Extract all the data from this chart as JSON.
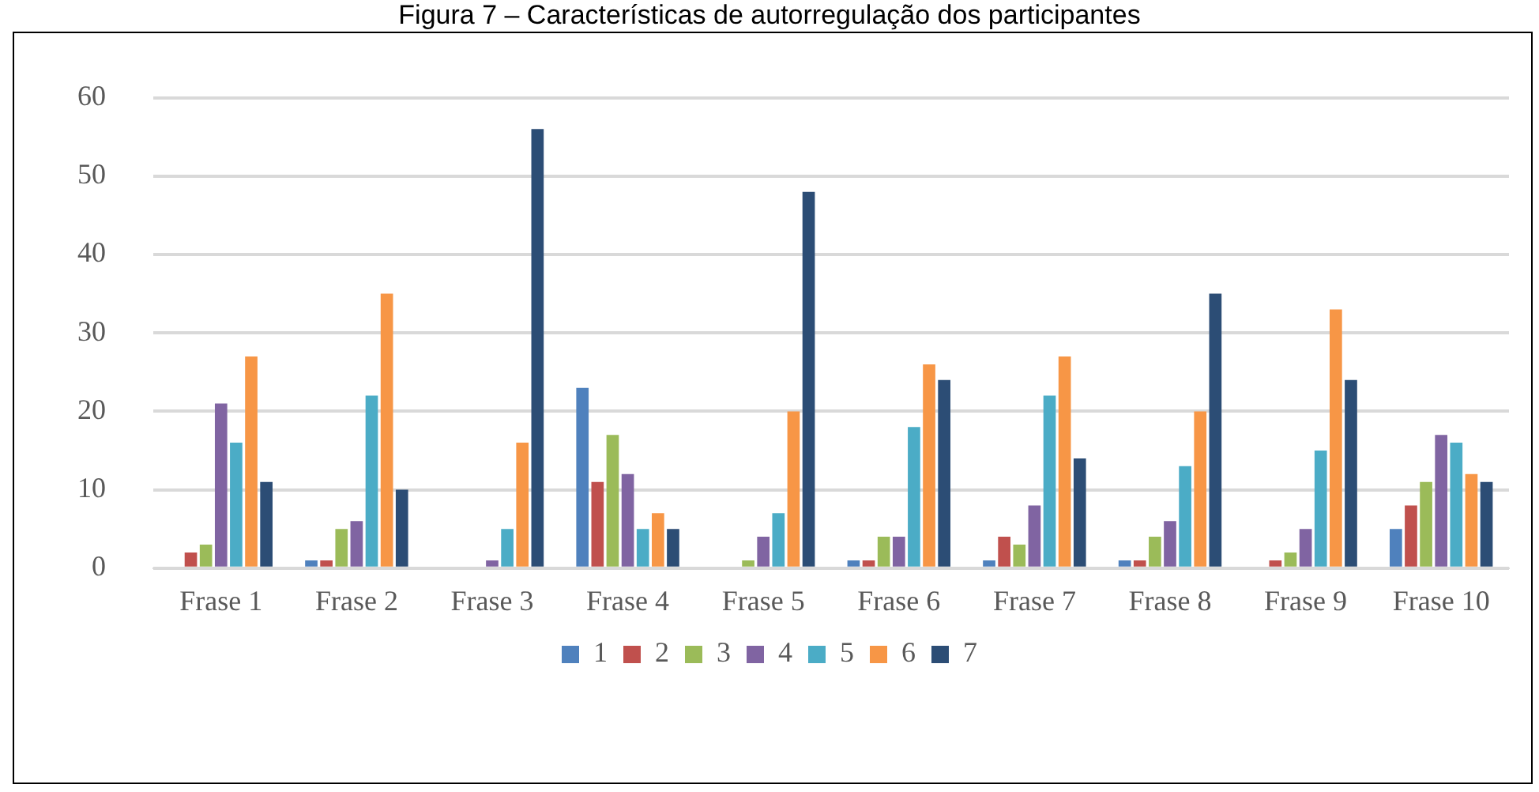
{
  "chart_data": {
    "type": "bar",
    "title": "Figura 7 – Características de autorregulação dos participantes",
    "categories": [
      "Frase 1",
      "Frase 2",
      "Frase 3",
      "Frase 4",
      "Frase 5",
      "Frase 6",
      "Frase 7",
      "Frase 8",
      "Frase 9",
      "Frase 10"
    ],
    "series": [
      {
        "name": "1",
        "color": "#4f81bd",
        "values": [
          0,
          1,
          0,
          23,
          0,
          1,
          1,
          1,
          0,
          5
        ]
      },
      {
        "name": "2",
        "color": "#c0504d",
        "values": [
          2,
          1,
          0,
          11,
          0,
          1,
          4,
          1,
          1,
          8
        ]
      },
      {
        "name": "3",
        "color": "#9bbb59",
        "values": [
          3,
          5,
          0,
          17,
          1,
          4,
          3,
          4,
          2,
          11
        ]
      },
      {
        "name": "4",
        "color": "#8064a2",
        "values": [
          21,
          6,
          1,
          12,
          4,
          4,
          8,
          6,
          5,
          17
        ]
      },
      {
        "name": "5",
        "color": "#4bacc6",
        "values": [
          16,
          22,
          5,
          5,
          7,
          18,
          22,
          13,
          15,
          16
        ]
      },
      {
        "name": "6",
        "color": "#f79646",
        "values": [
          27,
          35,
          16,
          7,
          20,
          26,
          27,
          20,
          33,
          12
        ]
      },
      {
        "name": "7",
        "color": "#2c4d75",
        "values": [
          11,
          10,
          56,
          5,
          48,
          24,
          14,
          35,
          24,
          11
        ]
      }
    ],
    "ylim": [
      0,
      60
    ],
    "yticks": [
      0,
      10,
      20,
      30,
      40,
      50,
      60
    ],
    "grid": "y",
    "legend": "bottom"
  }
}
